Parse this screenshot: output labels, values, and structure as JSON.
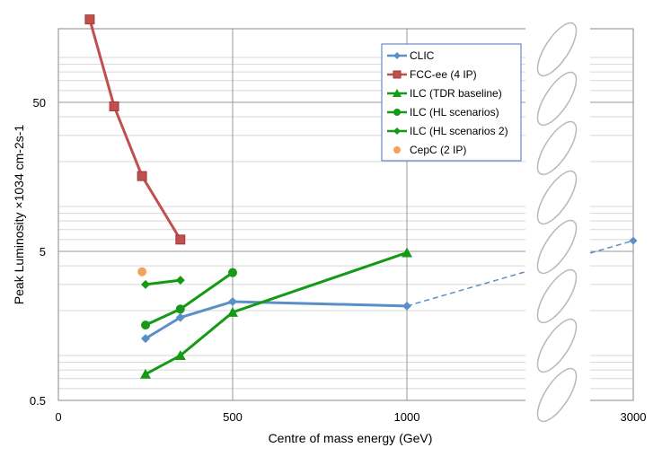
{
  "chart_data": {
    "type": "line",
    "title": "",
    "xlabel": "Centre of mass energy (GeV)",
    "ylabel": "Peak Luminosity ×1034 cm-2s-1",
    "yscale": "log",
    "ylim": [
      0.5,
      200
    ],
    "x_ticks": [
      "0",
      "500",
      "1000",
      "3000"
    ],
    "y_ticks": [
      "0.5",
      "5",
      "50"
    ],
    "legend_position": "top-right",
    "axis_break": "between 1000 and 3000",
    "series": [
      {
        "name": "CLIC",
        "color": "#5B8FC7",
        "marker": "diamond",
        "points": [
          [
            250,
            1.3
          ],
          [
            350,
            1.8
          ],
          [
            500,
            2.3
          ],
          [
            1000,
            2.15
          ]
        ],
        "extrapolated": [
          [
            1000,
            2.15
          ],
          [
            3000,
            5.9
          ]
        ]
      },
      {
        "name": "FCC-ee (4 IP)",
        "color": "#C0504D",
        "marker": "square",
        "points": [
          [
            90,
            180
          ],
          [
            160,
            47
          ],
          [
            240,
            16
          ],
          [
            350,
            6.0
          ]
        ]
      },
      {
        "name": "ILC (TDR baseline)",
        "color": "#159A15",
        "marker": "triangle",
        "points": [
          [
            250,
            0.75
          ],
          [
            350,
            1.0
          ],
          [
            500,
            1.95
          ],
          [
            1000,
            4.9
          ]
        ]
      },
      {
        "name": "ILC (HL scenarios)",
        "color": "#159A15",
        "marker": "circle",
        "points": [
          [
            250,
            1.6
          ],
          [
            350,
            2.05
          ],
          [
            500,
            3.6
          ]
        ]
      },
      {
        "name": "ILC (HL scenarios 2)",
        "color": "#159A15",
        "marker": "diamond",
        "points": [
          [
            250,
            3.0
          ],
          [
            350,
            3.2
          ]
        ]
      },
      {
        "name": "CepC (2 IP)",
        "color": "#F4A25B",
        "marker": "circle",
        "points": [
          [
            240,
            3.65
          ]
        ]
      }
    ]
  }
}
